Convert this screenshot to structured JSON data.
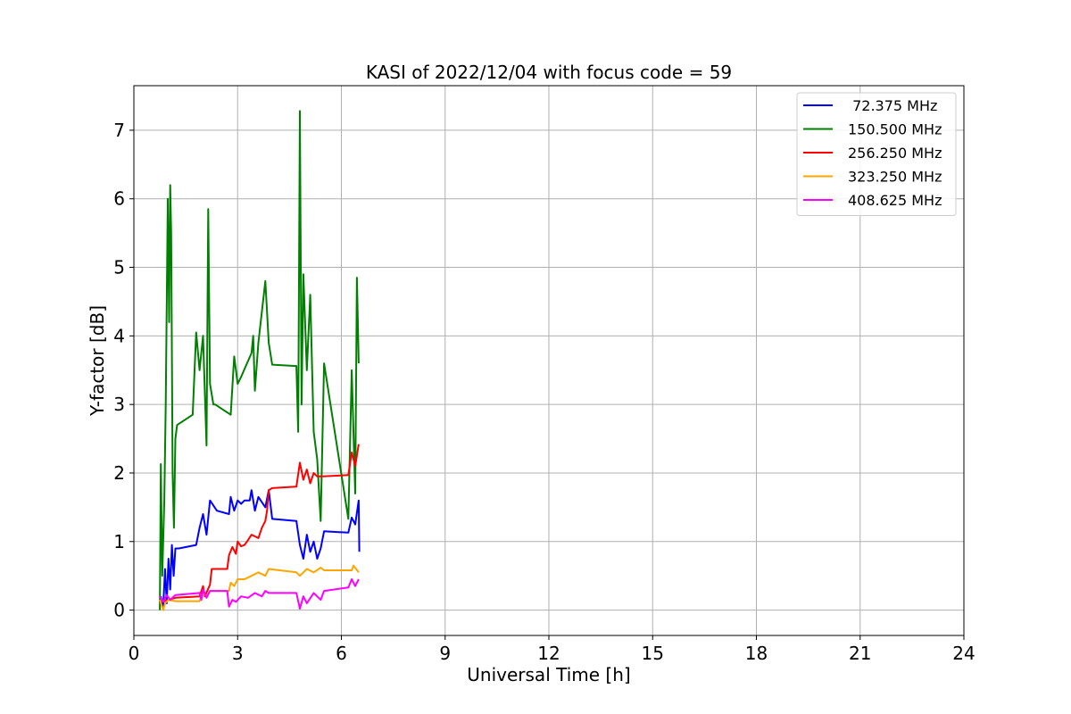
{
  "chart_data": {
    "type": "line",
    "title": "KASI of 2022/12/04 with focus code = 59",
    "xlabel": "Universal Time [h]",
    "ylabel": "Y-factor [dB]",
    "xlim": [
      0,
      24
    ],
    "ylim": [
      -0.37,
      7.65
    ],
    "xticks": [
      0,
      3,
      6,
      9,
      12,
      15,
      18,
      21,
      24
    ],
    "yticks": [
      0,
      1,
      2,
      3,
      4,
      5,
      6,
      7
    ],
    "grid": true,
    "legend_position": "top-right",
    "series": [
      {
        "name": " 72.375 MHz",
        "color": "#0000ff",
        "x": [
          0.78,
          0.85,
          0.9,
          0.95,
          1.0,
          1.05,
          1.1,
          1.15,
          1.2,
          1.3,
          1.8,
          1.9,
          2.0,
          2.1,
          2.2,
          2.4,
          2.75,
          2.8,
          2.9,
          3.0,
          3.1,
          3.2,
          3.35,
          3.4,
          3.5,
          3.6,
          3.8,
          3.9,
          4.0,
          4.7,
          4.8,
          4.9,
          5.0,
          5.1,
          5.2,
          5.3,
          5.4,
          5.5,
          6.2,
          6.3,
          6.4,
          6.5,
          6.52
        ],
        "y": [
          0.2,
          0.05,
          0.6,
          0.1,
          0.75,
          0.3,
          0.95,
          0.5,
          0.9,
          0.9,
          0.95,
          1.2,
          1.4,
          1.1,
          1.6,
          1.45,
          1.4,
          1.65,
          1.45,
          1.6,
          1.55,
          1.6,
          1.6,
          1.75,
          1.45,
          1.65,
          1.5,
          1.75,
          1.33,
          1.3,
          0.95,
          0.75,
          1.1,
          0.85,
          1.0,
          0.75,
          0.9,
          1.15,
          1.13,
          1.35,
          1.25,
          1.6,
          0.85
        ]
      },
      {
        "name": "150.500 MHz",
        "color": "#008000",
        "x": [
          0.75,
          0.78,
          0.82,
          0.88,
          0.92,
          0.98,
          1.02,
          1.05,
          1.08,
          1.12,
          1.16,
          1.2,
          1.25,
          1.7,
          1.8,
          1.9,
          2.0,
          2.1,
          2.15,
          2.2,
          2.3,
          2.35,
          2.8,
          2.9,
          3.0,
          3.1,
          3.4,
          3.45,
          3.5,
          3.6,
          3.8,
          3.9,
          4.0,
          4.7,
          4.75,
          4.8,
          4.85,
          4.9,
          5.0,
          5.1,
          5.2,
          5.3,
          5.4,
          5.5,
          6.2,
          6.3,
          6.4,
          6.45,
          6.5
        ],
        "y": [
          0.0,
          2.13,
          0.5,
          1.6,
          3.0,
          6.0,
          4.2,
          6.2,
          5.5,
          2.0,
          1.2,
          2.5,
          2.7,
          2.85,
          4.05,
          3.5,
          4.0,
          2.4,
          5.85,
          3.3,
          3.0,
          3.0,
          2.85,
          3.7,
          3.3,
          3.4,
          3.75,
          4.0,
          3.2,
          3.9,
          4.8,
          3.9,
          3.58,
          3.56,
          2.6,
          7.28,
          3.0,
          4.9,
          3.5,
          4.6,
          2.6,
          2.2,
          1.3,
          3.6,
          1.33,
          3.5,
          1.7,
          4.85,
          3.6
        ]
      },
      {
        "name": "256.250 MHz",
        "color": "#ff0000",
        "x": [
          0.8,
          1.2,
          1.9,
          2.0,
          2.05,
          2.2,
          2.25,
          2.7,
          2.75,
          2.85,
          2.95,
          3.0,
          3.1,
          3.2,
          3.3,
          3.4,
          3.6,
          3.7,
          3.8,
          3.85,
          3.9,
          4.0,
          4.7,
          4.8,
          4.9,
          5.0,
          5.1,
          5.2,
          5.3,
          5.45,
          6.2,
          6.3,
          6.4,
          6.5
        ],
        "y": [
          0.12,
          0.18,
          0.2,
          0.35,
          0.2,
          0.37,
          0.6,
          0.6,
          0.8,
          0.92,
          0.82,
          1.0,
          0.93,
          0.95,
          1.02,
          1.1,
          1.05,
          1.2,
          1.3,
          1.45,
          1.75,
          1.78,
          1.8,
          2.15,
          1.9,
          2.05,
          1.85,
          2.0,
          1.95,
          1.95,
          1.97,
          2.3,
          2.1,
          2.42
        ]
      },
      {
        "name": "323.250 MHz",
        "color": "#ffa500",
        "x": [
          0.75,
          0.85,
          0.9,
          1.0,
          1.2,
          1.9,
          1.95,
          2.0,
          2.1,
          2.2,
          2.75,
          2.8,
          2.9,
          3.0,
          3.2,
          3.4,
          3.6,
          3.8,
          3.9,
          4.7,
          4.8,
          5.0,
          5.2,
          5.4,
          5.5,
          6.3,
          6.35,
          6.5
        ],
        "y": [
          0.15,
          0.0,
          0.1,
          0.15,
          0.13,
          0.13,
          0.2,
          0.25,
          0.2,
          0.28,
          0.28,
          0.4,
          0.35,
          0.45,
          0.45,
          0.5,
          0.55,
          0.5,
          0.6,
          0.55,
          0.5,
          0.6,
          0.55,
          0.62,
          0.58,
          0.58,
          0.65,
          0.55
        ]
      },
      {
        "name": "408.625 MHz",
        "color": "#ff00ff",
        "x": [
          0.75,
          0.85,
          0.95,
          1.05,
          1.2,
          1.9,
          1.95,
          2.0,
          2.1,
          2.2,
          2.7,
          2.75,
          2.85,
          2.95,
          3.1,
          3.3,
          3.5,
          3.7,
          3.8,
          3.9,
          4.7,
          4.8,
          4.9,
          5.0,
          5.2,
          5.4,
          5.5,
          6.2,
          6.3,
          6.4,
          6.5
        ],
        "y": [
          0.2,
          0.12,
          0.22,
          0.15,
          0.22,
          0.25,
          0.15,
          0.3,
          0.18,
          0.28,
          0.28,
          0.05,
          0.15,
          0.12,
          0.2,
          0.18,
          0.25,
          0.2,
          0.28,
          0.25,
          0.25,
          0.02,
          0.2,
          0.1,
          0.25,
          0.15,
          0.28,
          0.33,
          0.45,
          0.35,
          0.45
        ]
      }
    ]
  }
}
